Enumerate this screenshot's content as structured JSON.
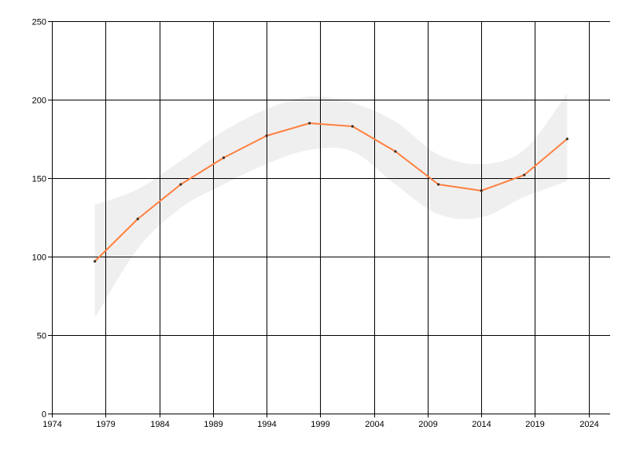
{
  "chart_data": {
    "type": "line",
    "title": "",
    "xlabel": "",
    "ylabel": "",
    "xlim": [
      1974,
      2026
    ],
    "ylim": [
      0,
      250
    ],
    "x_ticks": [
      1974,
      1979,
      1984,
      1989,
      1994,
      1999,
      2004,
      2009,
      2014,
      2019,
      2024
    ],
    "y_ticks": [
      0,
      50,
      100,
      150,
      200,
      250
    ],
    "grid": true,
    "legend": "none",
    "series": [
      {
        "x": [
          1978,
          1982,
          1986,
          1990,
          1994,
          1998,
          2002,
          2006,
          2010,
          2014,
          2018,
          2022
        ],
        "values": [
          97,
          124,
          146,
          163,
          177,
          185,
          183,
          167,
          146,
          142,
          152,
          175
        ],
        "color": "#ff7f3f"
      }
    ],
    "band": {
      "x": [
        1978,
        1982,
        1986,
        1990,
        1994,
        1998,
        2002,
        2006,
        2010,
        2014,
        2018,
        2022
      ],
      "upper": [
        133,
        143,
        161,
        180,
        194,
        202,
        198,
        186,
        165,
        159,
        168,
        204
      ],
      "lower": [
        61,
        105,
        131,
        146,
        159,
        168,
        167,
        146,
        127,
        125,
        138,
        148
      ],
      "color": "#efefef"
    }
  }
}
